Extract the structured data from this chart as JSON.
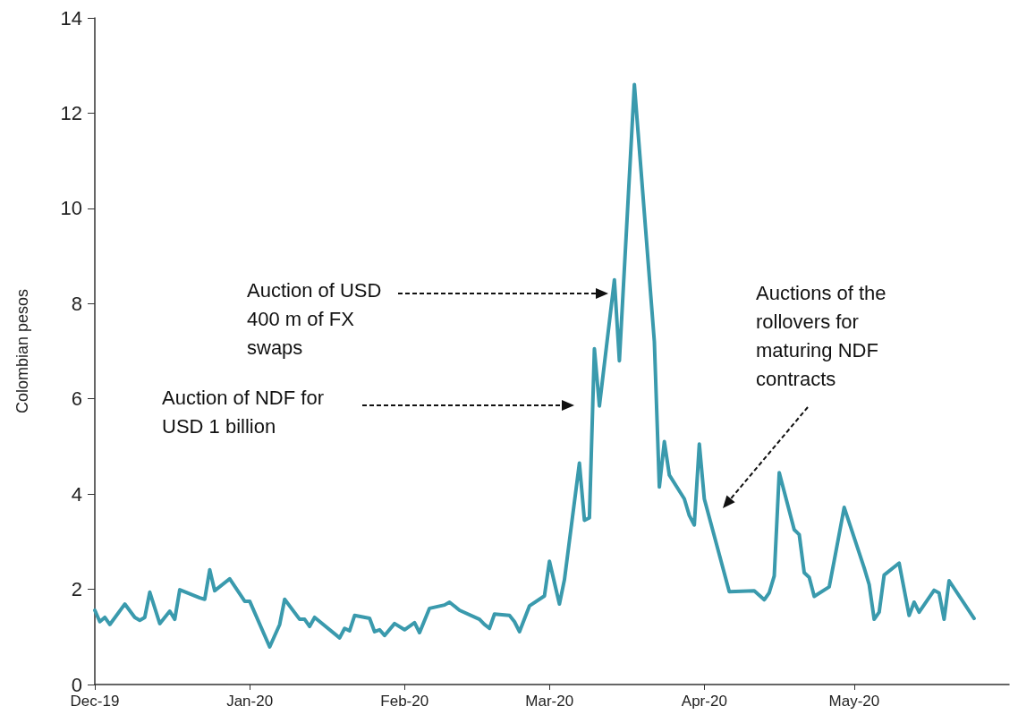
{
  "chart_data": {
    "type": "line",
    "ylabel": "Colombian pesos",
    "x": [
      "2019-12-01",
      "2019-12-02",
      "2019-12-03",
      "2019-12-04",
      "2019-12-07",
      "2019-12-09",
      "2019-12-10",
      "2019-12-11",
      "2019-12-12",
      "2019-12-14",
      "2019-12-16",
      "2019-12-17",
      "2019-12-18",
      "2019-12-22",
      "2019-12-23",
      "2019-12-24",
      "2019-12-25",
      "2019-12-28",
      "2019-12-31",
      "2020-01-01",
      "2020-01-05",
      "2020-01-07",
      "2020-01-08",
      "2020-01-11",
      "2020-01-12",
      "2020-01-13",
      "2020-01-14",
      "2020-01-19",
      "2020-01-20",
      "2020-01-21",
      "2020-01-22",
      "2020-01-25",
      "2020-01-26",
      "2020-01-27",
      "2020-01-28",
      "2020-01-30",
      "2020-02-01",
      "2020-02-03",
      "2020-02-04",
      "2020-02-06",
      "2020-02-09",
      "2020-02-10",
      "2020-02-12",
      "2020-02-16",
      "2020-02-17",
      "2020-02-18",
      "2020-02-19",
      "2020-02-22",
      "2020-02-23",
      "2020-02-24",
      "2020-02-26",
      "2020-02-29",
      "2020-03-01",
      "2020-03-03",
      "2020-03-04",
      "2020-03-07",
      "2020-03-08",
      "2020-03-09",
      "2020-03-10",
      "2020-03-11",
      "2020-03-14",
      "2020-03-15",
      "2020-03-18",
      "2020-03-22",
      "2020-03-23",
      "2020-03-24",
      "2020-03-25",
      "2020-03-28",
      "2020-03-29",
      "2020-03-30",
      "2020-03-31",
      "2020-04-01",
      "2020-04-06",
      "2020-04-11",
      "2020-04-13",
      "2020-04-14",
      "2020-04-15",
      "2020-04-16",
      "2020-04-19",
      "2020-04-20",
      "2020-04-21",
      "2020-04-22",
      "2020-04-23",
      "2020-04-26",
      "2020-04-27",
      "2020-04-29",
      "2020-05-03",
      "2020-05-04",
      "2020-05-05",
      "2020-05-06",
      "2020-05-07",
      "2020-05-10",
      "2020-05-12",
      "2020-05-13",
      "2020-05-14",
      "2020-05-17",
      "2020-05-18",
      "2020-05-19",
      "2020-05-20",
      "2020-05-25"
    ],
    "series": [
      {
        "color": "#3a9aad",
        "values": [
          1.56,
          1.32,
          1.41,
          1.26,
          1.69,
          1.41,
          1.35,
          1.41,
          1.94,
          1.28,
          1.54,
          1.37,
          1.99,
          1.82,
          1.79,
          2.41,
          1.97,
          2.22,
          1.75,
          1.75,
          0.79,
          1.26,
          1.79,
          1.37,
          1.37,
          1.22,
          1.41,
          0.98,
          1.18,
          1.13,
          1.45,
          1.39,
          1.11,
          1.15,
          1.03,
          1.28,
          1.15,
          1.3,
          1.09,
          1.6,
          1.67,
          1.73,
          1.56,
          1.37,
          1.26,
          1.18,
          1.48,
          1.45,
          1.32,
          1.11,
          1.65,
          1.86,
          2.59,
          1.69,
          2.2,
          4.65,
          3.45,
          3.5,
          7.05,
          5.85,
          8.5,
          6.8,
          12.6,
          7.2,
          4.15,
          5.1,
          4.4,
          3.9,
          3.55,
          3.35,
          5.05,
          3.9,
          1.95,
          1.97,
          1.78,
          1.93,
          2.28,
          4.45,
          3.25,
          3.15,
          2.35,
          2.25,
          1.85,
          2.05,
          2.6,
          3.72,
          2.45,
          2.1,
          1.37,
          1.52,
          2.3,
          2.55,
          1.45,
          1.73,
          1.52,
          1.98,
          1.92,
          1.37,
          2.18,
          1.39
        ]
      }
    ],
    "xlim": [
      "2019-12-01",
      "2020-06-01"
    ],
    "xticks": [
      {
        "value": "2019-12-01",
        "label": "Dec-19"
      },
      {
        "value": "2020-01-01",
        "label": "Jan-20"
      },
      {
        "value": "2020-02-01",
        "label": "Feb-20"
      },
      {
        "value": "2020-03-01",
        "label": "Mar-20"
      },
      {
        "value": "2020-04-01",
        "label": "Apr-20"
      },
      {
        "value": "2020-05-01",
        "label": "May-20"
      }
    ],
    "ylim": [
      0,
      14
    ],
    "yticks": [
      0,
      2,
      4,
      6,
      8,
      10,
      12,
      14
    ],
    "grid": false,
    "marker": "none",
    "line_style": "solid",
    "annotations": [
      "Auction of NDF for\nUSD 1 billion",
      "Auction of USD\n400 m of FX\nswaps",
      "Auctions of the\nrollovers for\nmaturing NDF\ncontracts"
    ]
  }
}
